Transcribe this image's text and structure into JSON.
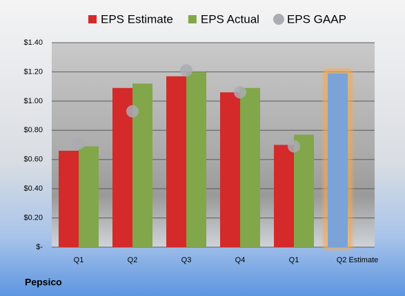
{
  "chart_data": {
    "type": "bar",
    "footer": "Pepsico",
    "categories": [
      "Q1",
      "Q2",
      "Q3",
      "Q4",
      "Q1",
      "Q2 Estimate"
    ],
    "series": [
      {
        "name": "EPS Estimate",
        "color": "#d42a2a",
        "values": [
          0.66,
          1.09,
          1.17,
          1.06,
          0.7,
          1.19
        ],
        "colors": [
          "#d42a2a",
          "#d42a2a",
          "#d42a2a",
          "#d42a2a",
          "#d42a2a",
          "#7ba3d8"
        ]
      },
      {
        "name": "EPS Actual",
        "color": "#82a64a",
        "values": [
          0.69,
          1.12,
          1.2,
          1.09,
          0.77,
          null
        ]
      },
      {
        "name": "EPS GAAP",
        "color": "#a9acb3",
        "type": "scatter",
        "values": [
          0.71,
          0.93,
          1.21,
          1.06,
          0.69,
          null
        ]
      }
    ],
    "ylim": [
      0,
      1.4
    ],
    "yticks": [
      {
        "value": 0,
        "label": "$-"
      },
      {
        "value": 0.2,
        "label": "$0.20"
      },
      {
        "value": 0.4,
        "label": "$0.40"
      },
      {
        "value": 0.6,
        "label": "$0.60"
      },
      {
        "value": 0.8,
        "label": "$0.80"
      },
      {
        "value": 1.0,
        "label": "$1.00"
      },
      {
        "value": 1.2,
        "label": "$1.20"
      },
      {
        "value": 1.4,
        "label": "$1.40"
      }
    ],
    "grid": true
  }
}
